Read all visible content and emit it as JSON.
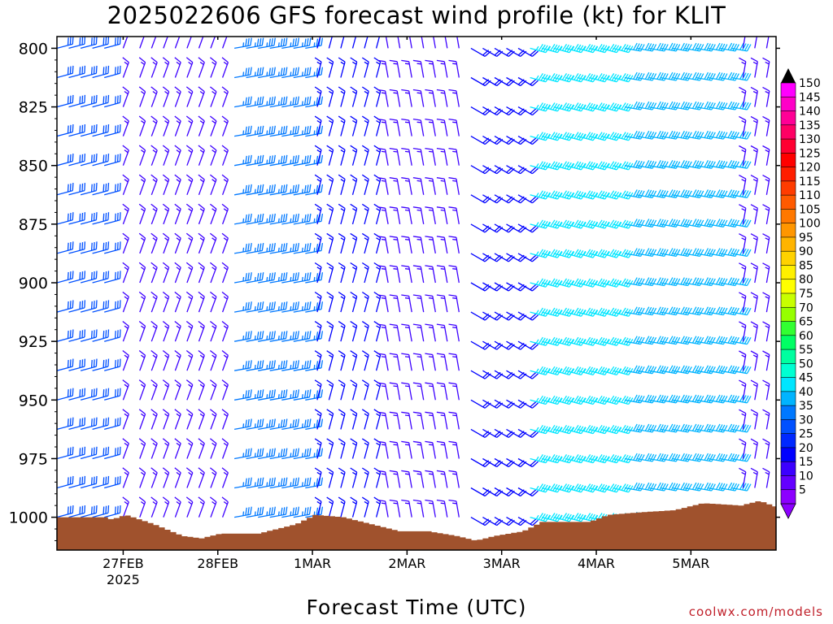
{
  "title": "2025022606 GFS forecast wind profile (kt) for KLIT",
  "xaxis_title": "Forecast Time (UTC)",
  "credit": "coolwx.com/models",
  "chart_data": {
    "type": "wind-barbs",
    "title": "2025022606 GFS forecast wind profile (kt) for KLIT",
    "xlabel": "Forecast Time (UTC)",
    "ylabel": "",
    "y_ticks": [
      800,
      825,
      850,
      875,
      900,
      925,
      950,
      975,
      1000
    ],
    "y_range": [
      1014,
      795
    ],
    "x_range": [
      0,
      7.6
    ],
    "x_ticks": [
      {
        "value": 0.7,
        "label": "27FEB",
        "sublabel": "2025"
      },
      {
        "value": 1.7,
        "label": "28FEB",
        "sublabel": ""
      },
      {
        "value": 2.7,
        "label": "1MAR",
        "sublabel": ""
      },
      {
        "value": 3.7,
        "label": "2MAR",
        "sublabel": ""
      },
      {
        "value": 4.7,
        "label": "3MAR",
        "sublabel": ""
      },
      {
        "value": 5.7,
        "label": "4MAR",
        "sublabel": ""
      },
      {
        "value": 6.7,
        "label": "5MAR",
        "sublabel": ""
      }
    ],
    "levels": [
      800,
      812.5,
      825,
      837.5,
      850,
      862.5,
      875,
      887.5,
      900,
      912.5,
      925,
      937.5,
      950,
      962.5,
      975,
      987.5,
      1000
    ],
    "times": [
      0.0,
      0.125,
      0.25,
      0.375,
      0.5,
      0.7,
      0.875,
      1.0,
      1.125,
      1.25,
      1.375,
      1.5,
      1.625,
      1.75,
      1.875,
      2.0,
      2.125,
      2.25,
      2.375,
      2.5,
      2.625,
      2.75,
      2.875,
      3.0,
      3.125,
      3.25,
      3.375,
      3.5,
      3.625,
      3.75,
      3.875,
      4.0,
      4.125,
      4.25,
      4.375,
      4.5,
      4.625,
      4.75,
      4.875,
      5.0,
      5.125,
      5.25,
      5.375,
      5.5,
      5.625,
      5.75,
      5.875,
      6.0,
      6.125,
      6.25,
      6.375,
      6.5,
      6.625,
      6.75,
      6.875,
      7.0,
      7.125,
      7.25,
      7.375,
      7.5
    ],
    "wind_regimes": [
      {
        "t_start": 0.0,
        "t_end": 0.7,
        "direction_deg": 255,
        "speed_kt": 30
      },
      {
        "t_start": 0.7,
        "t_end": 1.8,
        "direction_deg": 200,
        "speed_kt": 15
      },
      {
        "t_start": 1.8,
        "t_end": 2.7,
        "direction_deg": 260,
        "speed_kt": 35
      },
      {
        "t_start": 2.7,
        "t_end": 3.4,
        "direction_deg": 195,
        "speed_kt": 18
      },
      {
        "t_start": 3.4,
        "t_end": 4.3,
        "direction_deg": 170,
        "speed_kt": 15
      },
      {
        "t_start": 4.3,
        "t_end": 4.9,
        "direction_deg": 300,
        "speed_kt": 20
      },
      {
        "t_start": 4.9,
        "t_end": 6.0,
        "direction_deg": 285,
        "speed_kt": 45
      },
      {
        "t_start": 6.0,
        "t_end": 7.2,
        "direction_deg": 280,
        "speed_kt": 42
      },
      {
        "t_start": 7.2,
        "t_end": 7.6,
        "direction_deg": 190,
        "speed_kt": 15
      }
    ],
    "surface_pressure": [
      {
        "t": 0.0,
        "p": 1000
      },
      {
        "t": 0.5,
        "p": 1000
      },
      {
        "t": 0.55,
        "p": 1001
      },
      {
        "t": 0.7,
        "p": 999
      },
      {
        "t": 1.0,
        "p": 1003
      },
      {
        "t": 1.3,
        "p": 1008
      },
      {
        "t": 1.5,
        "p": 1009
      },
      {
        "t": 1.7,
        "p": 1007
      },
      {
        "t": 2.1,
        "p": 1007
      },
      {
        "t": 2.5,
        "p": 1003
      },
      {
        "t": 2.7,
        "p": 999
      },
      {
        "t": 3.0,
        "p": 1000
      },
      {
        "t": 3.3,
        "p": 1003
      },
      {
        "t": 3.6,
        "p": 1006
      },
      {
        "t": 3.9,
        "p": 1006
      },
      {
        "t": 4.2,
        "p": 1008
      },
      {
        "t": 4.4,
        "p": 1010
      },
      {
        "t": 4.6,
        "p": 1008
      },
      {
        "t": 4.9,
        "p": 1006
      },
      {
        "t": 5.1,
        "p": 1002
      },
      {
        "t": 5.6,
        "p": 1002
      },
      {
        "t": 5.8,
        "p": 999
      },
      {
        "t": 6.1,
        "p": 998
      },
      {
        "t": 6.5,
        "p": 997
      },
      {
        "t": 6.8,
        "p": 994
      },
      {
        "t": 7.2,
        "p": 995
      },
      {
        "t": 7.4,
        "p": 993
      },
      {
        "t": 7.6,
        "p": 996
      }
    ],
    "colorbar": {
      "label_values": [
        150,
        145,
        140,
        135,
        130,
        125,
        120,
        115,
        110,
        105,
        100,
        95,
        90,
        85,
        80,
        75,
        70,
        65,
        60,
        55,
        50,
        45,
        40,
        35,
        30,
        25,
        20,
        15,
        10,
        5
      ],
      "colors": [
        "#ff00ff",
        "#ff00c8",
        "#ff0096",
        "#ff0064",
        "#ff0032",
        "#ff0000",
        "#ff1e00",
        "#ff3c00",
        "#ff5a00",
        "#ff7800",
        "#ff9600",
        "#ffb400",
        "#ffd200",
        "#fff000",
        "#ffff00",
        "#c8ff00",
        "#96ff00",
        "#32ff32",
        "#00ff64",
        "#00ffa0",
        "#00ffd2",
        "#00e6ff",
        "#00b4ff",
        "#0078ff",
        "#0050ff",
        "#0028ff",
        "#0000ff",
        "#3c00ff",
        "#6400ff",
        "#8c00ff"
      ]
    },
    "colors": {
      "terrain": "#a0522d",
      "frame": "#000000"
    }
  }
}
